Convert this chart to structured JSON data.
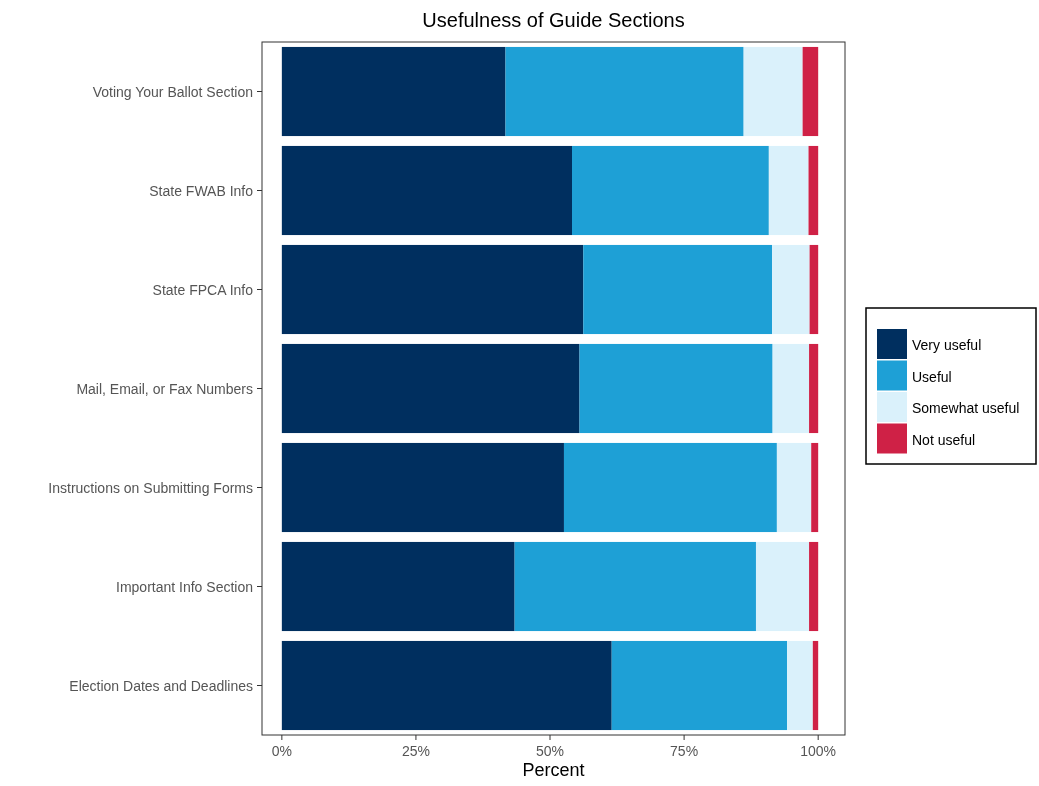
{
  "chart_data": {
    "type": "bar",
    "orientation": "horizontal",
    "stacked": true,
    "title": "Usefulness of Guide Sections",
    "xlabel": "Percent",
    "categories": [
      "Voting Your Ballot Section",
      "State FWAB Info",
      "State FPCA Info",
      "Mail, Email, or Fax Numbers",
      "Instructions on Submitting Forms",
      "Important Info Section",
      "Election Dates and Deadlines"
    ],
    "series": [
      {
        "name": "Very useful",
        "color": "#002f5f",
        "values": [
          41.7,
          54.1,
          56.2,
          55.5,
          52.6,
          43.4,
          61.5
        ]
      },
      {
        "name": "Useful",
        "color": "#1ea0d6",
        "values": [
          44.4,
          36.7,
          35.2,
          36.0,
          39.7,
          45.0,
          32.7
        ]
      },
      {
        "name": "Somewhat useful",
        "color": "#daf1fb",
        "values": [
          11.0,
          7.4,
          7.0,
          6.8,
          6.4,
          9.9,
          4.8
        ]
      },
      {
        "name": "Not useful",
        "color": "#cf2146",
        "values": [
          2.9,
          1.8,
          1.6,
          1.7,
          1.3,
          1.7,
          1.0
        ]
      }
    ],
    "xlim": [
      -3.7,
      105
    ],
    "xticks": [
      {
        "value": 0,
        "label": "0%"
      },
      {
        "value": 25,
        "label": "25%"
      },
      {
        "value": 50,
        "label": "50%"
      },
      {
        "value": 75,
        "label": "75%"
      },
      {
        "value": 100,
        "label": "100%"
      }
    ],
    "grid": false,
    "legend": "right"
  }
}
